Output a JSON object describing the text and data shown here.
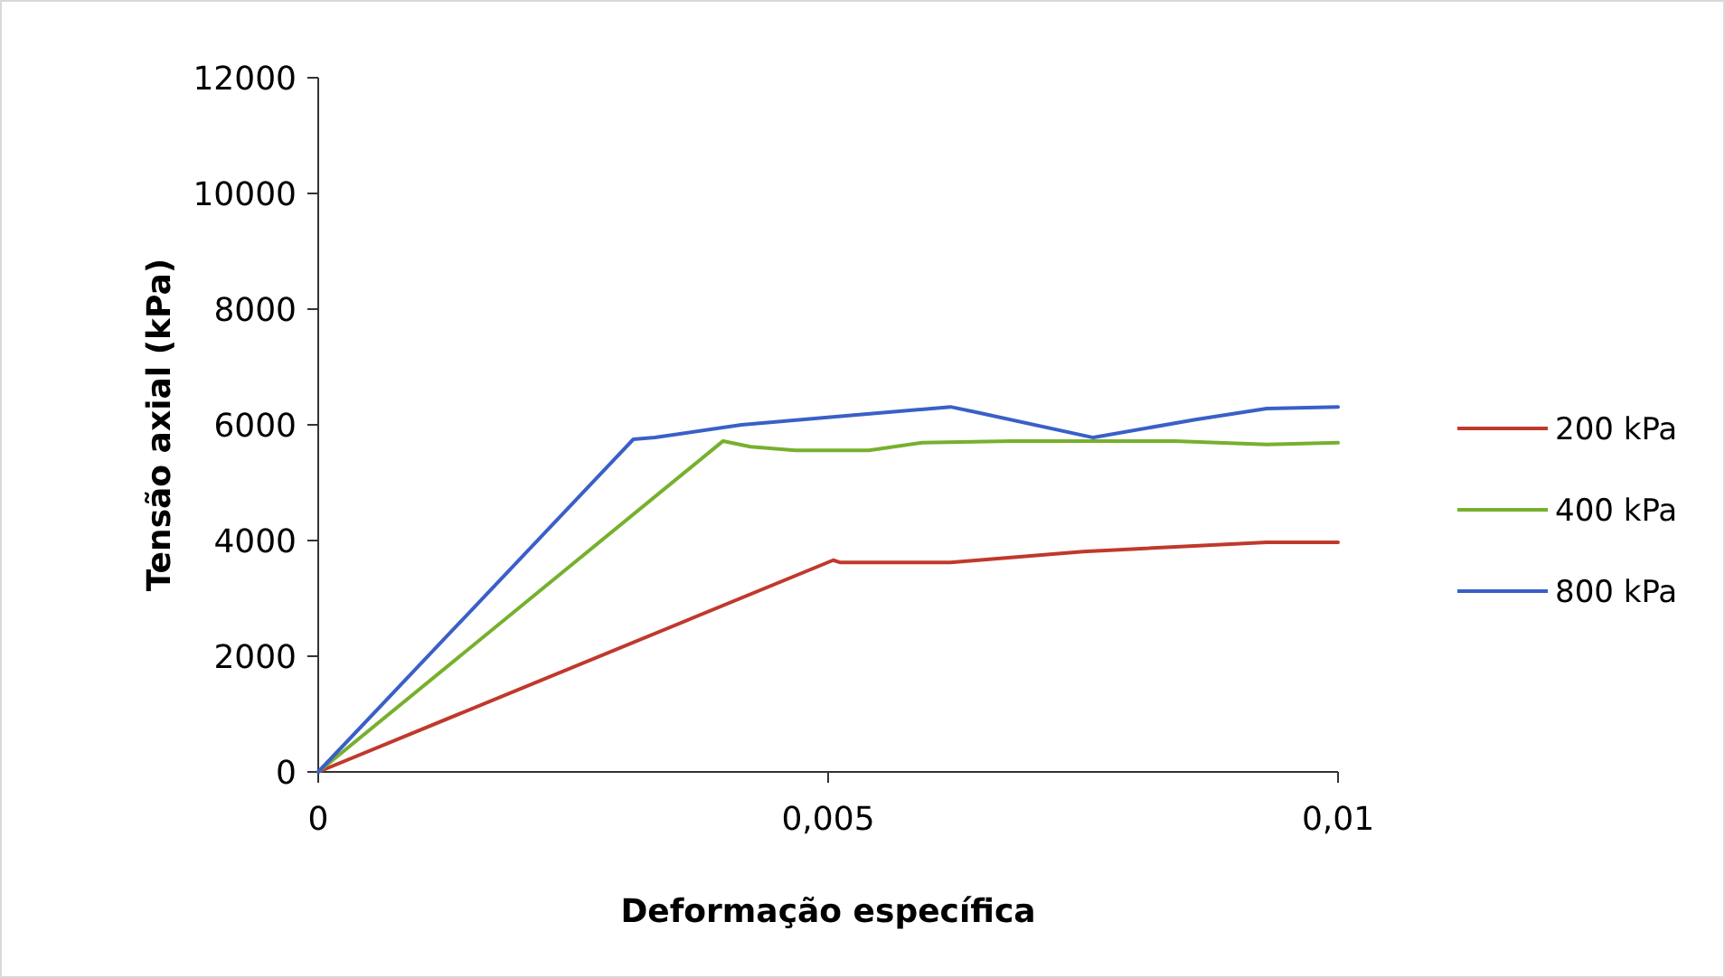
{
  "chart_data": {
    "type": "line",
    "xlabel": "Deformação específica",
    "ylabel": "Tensão axial (kPa)",
    "xlim": [
      0,
      0.01
    ],
    "xticks": [
      {
        "value": 0,
        "label": "0"
      },
      {
        "value": 0.005,
        "label": "0,005"
      },
      {
        "value": 0.01,
        "label": "0,01"
      }
    ],
    "ylim": [
      0,
      12000
    ],
    "yticks": [
      0,
      2000,
      4000,
      6000,
      8000,
      10000,
      12000
    ],
    "grid": false,
    "legend": "right",
    "marker": "none",
    "line_style": "solid",
    "series": [
      {
        "name": "200 kPa",
        "color": "#c0392b",
        "x": [
          0,
          0.00505,
          0.00512,
          0.0053,
          0.0062,
          0.0075,
          0.0093,
          0.01
        ],
        "values": [
          0,
          3660,
          3620,
          3620,
          3620,
          3810,
          3970,
          3970
        ]
      },
      {
        "name": "400 kPa",
        "color": "#77b02d",
        "x": [
          0,
          0.00397,
          0.00424,
          0.00468,
          0.0054,
          0.00592,
          0.0068,
          0.0084,
          0.0093,
          0.01
        ],
        "values": [
          0,
          5720,
          5620,
          5560,
          5560,
          5690,
          5720,
          5720,
          5660,
          5690
        ]
      },
      {
        "name": "800 kPa",
        "color": "#3a5fc8",
        "x": [
          0,
          0.00309,
          0.0033,
          0.00415,
          0.0052,
          0.0062,
          0.00645,
          0.0076,
          0.0086,
          0.0093,
          0.01
        ],
        "values": [
          0,
          5750,
          5780,
          6000,
          6160,
          6310,
          6220,
          5780,
          6090,
          6280,
          6310
        ]
      }
    ]
  }
}
